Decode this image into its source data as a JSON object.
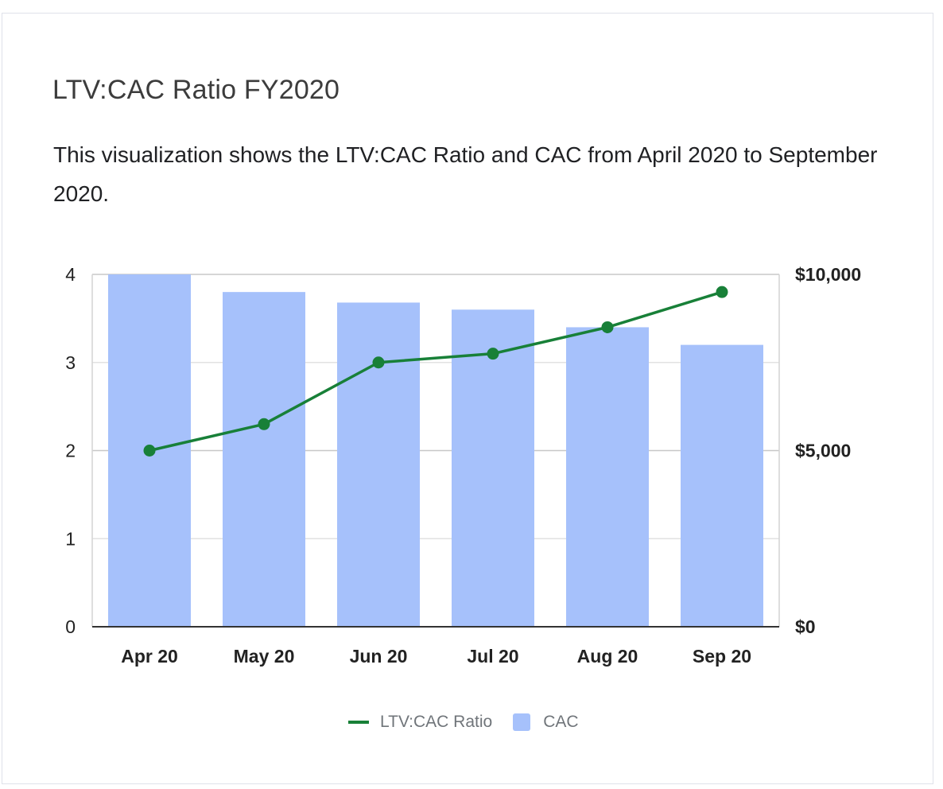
{
  "title": "LTV:CAC Ratio FY2020",
  "description": "This visualization shows the LTV:CAC Ratio and CAC from April 2020 to September 2020.",
  "chart_data": {
    "type": "bar",
    "categories": [
      "Apr 20",
      "May 20",
      "Jun 20",
      "Jul 20",
      "Aug 20",
      "Sep 20"
    ],
    "series": [
      {
        "name": "CAC",
        "type": "bar",
        "axis": "right",
        "values": [
          10000,
          9500,
          9200,
          9000,
          8500,
          8000
        ],
        "color": "#a6c1fb"
      },
      {
        "name": "LTV:CAC Ratio",
        "type": "line",
        "axis": "left",
        "values": [
          2.0,
          2.3,
          3.0,
          3.1,
          3.4,
          3.8
        ],
        "color": "#188038"
      }
    ],
    "y_left": {
      "ticks": [
        "0",
        "1",
        "2",
        "3",
        "4"
      ],
      "ylim": [
        0,
        4
      ]
    },
    "y_right": {
      "ticks": [
        "$0",
        "$5,000",
        "$10,000"
      ],
      "ylim": [
        0,
        10000
      ]
    },
    "grid": true,
    "legend": "bottom"
  }
}
